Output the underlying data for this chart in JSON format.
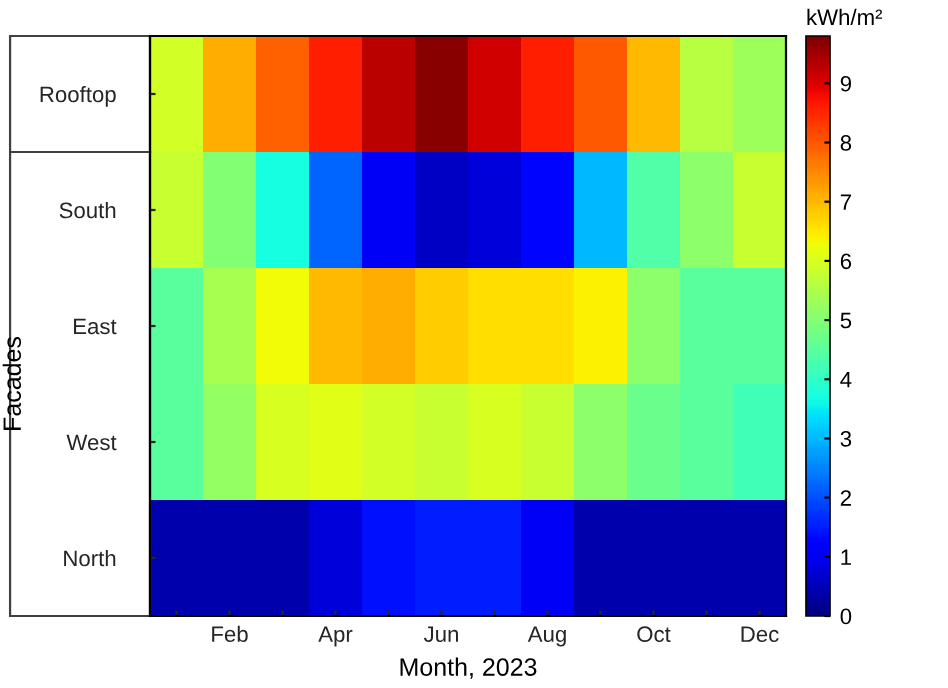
{
  "chart_data": {
    "type": "heatmap",
    "xlabel": "Month, 2023",
    "ylabel": "Facades",
    "clabel": "kWh/m²",
    "categories": [
      null,
      "Feb",
      null,
      "Apr",
      null,
      "Jun",
      null,
      "Aug",
      null,
      "Oct",
      null,
      "Dec"
    ],
    "y_categories": [
      "Rooftop",
      "South",
      "East",
      "West",
      "North"
    ],
    "cells": [
      [
        5.9,
        7.1,
        7.9,
        8.6,
        9.3,
        9.7,
        9.1,
        8.6,
        8.0,
        7.0,
        5.6,
        5.3
      ],
      [
        5.8,
        5.0,
        3.7,
        2.2,
        1.0,
        0.6,
        0.8,
        1.3,
        3.0,
        4.4,
        5.1,
        5.8
      ],
      [
        4.5,
        5.4,
        6.3,
        7.0,
        7.1,
        6.8,
        6.6,
        6.6,
        6.4,
        5.1,
        4.5,
        4.5
      ],
      [
        4.5,
        5.2,
        6.0,
        6.1,
        5.9,
        5.8,
        6.0,
        5.8,
        5.1,
        4.7,
        4.5,
        4.2
      ],
      [
        0.4,
        0.4,
        0.4,
        0.8,
        1.4,
        1.5,
        1.5,
        1.0,
        0.4,
        0.4,
        0.4,
        0.4
      ]
    ],
    "clim": [
      0,
      9.8
    ],
    "cticks": [
      0,
      1,
      2,
      3,
      4,
      5,
      6,
      7,
      8,
      9
    ]
  }
}
